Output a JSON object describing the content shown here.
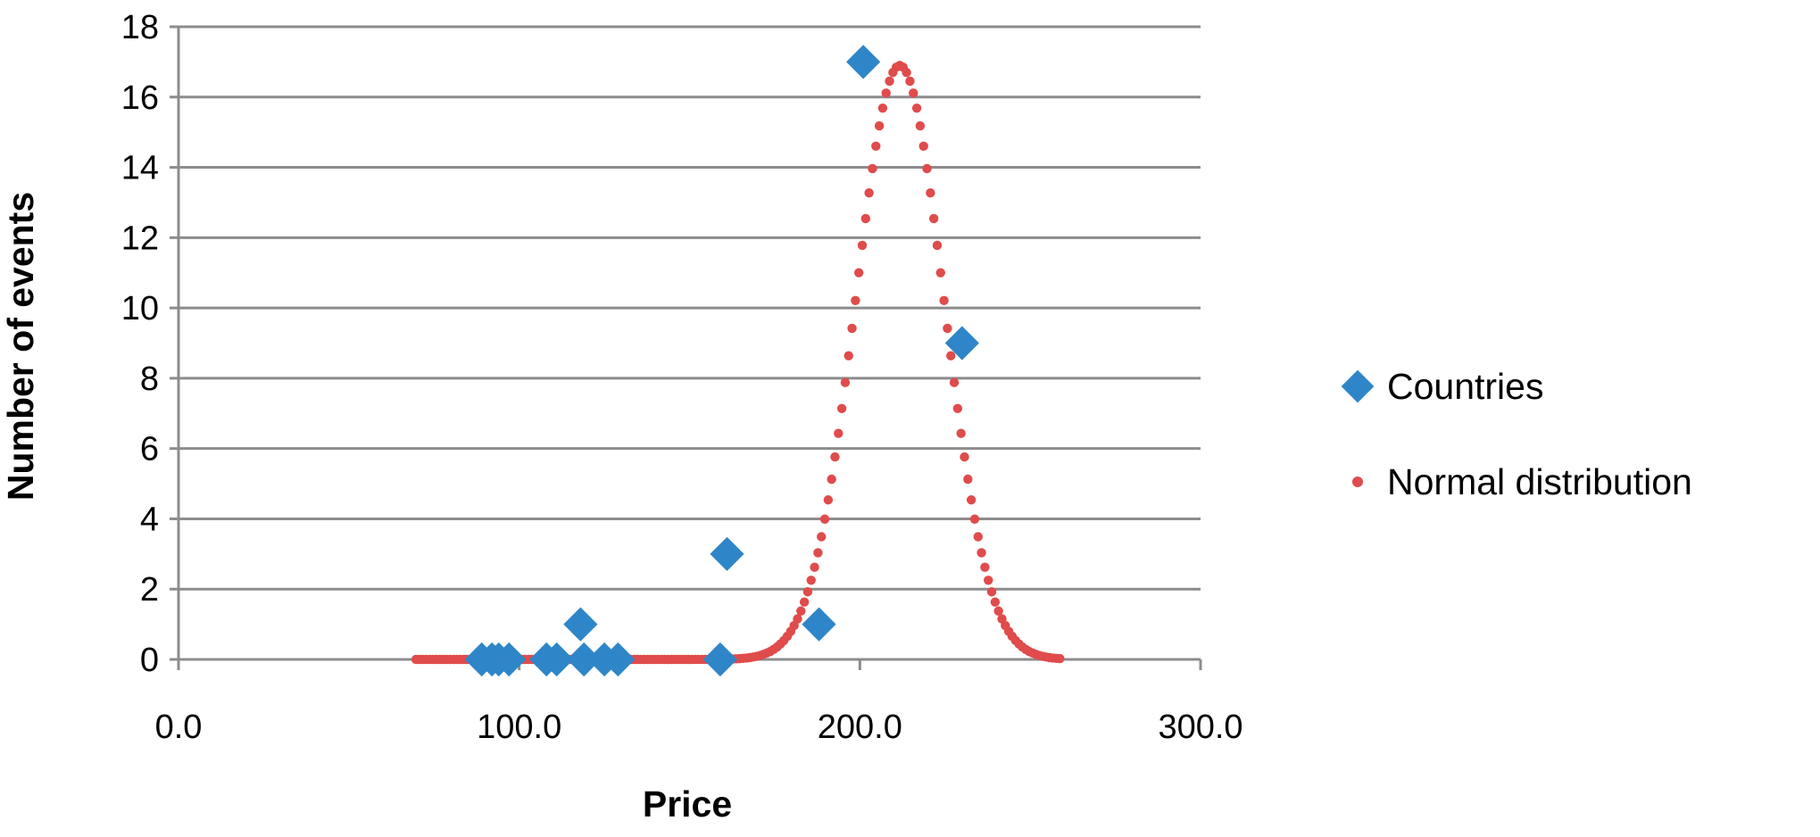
{
  "chart_data": {
    "type": "scatter",
    "title": "",
    "xlabel": "Price",
    "ylabel": "Number of events",
    "xlim": [
      0,
      300
    ],
    "ylim": [
      0,
      18
    ],
    "x_ticks": [
      0,
      100,
      200,
      300
    ],
    "x_tick_labels": [
      "0.0",
      "100.0",
      "200.0",
      "300.0"
    ],
    "y_ticks": [
      0,
      2,
      4,
      6,
      8,
      10,
      12,
      14,
      16,
      18
    ],
    "y_tick_labels": [
      "0",
      "2",
      "4",
      "6",
      "8",
      "10",
      "12",
      "14",
      "16",
      "18"
    ],
    "grid": "horizontal",
    "legend_position": "right",
    "series": [
      {
        "name": "Countries",
        "marker": "diamond",
        "color": "#2E86C8",
        "points": [
          [
            89,
            0
          ],
          [
            92,
            0
          ],
          [
            94,
            0
          ],
          [
            97,
            0
          ],
          [
            108,
            0
          ],
          [
            111,
            0
          ],
          [
            118,
            1
          ],
          [
            119,
            0
          ],
          [
            125,
            0
          ],
          [
            129,
            0
          ],
          [
            159,
            0
          ],
          [
            161,
            3
          ],
          [
            188,
            1
          ],
          [
            201,
            17
          ],
          [
            230,
            9
          ]
        ]
      },
      {
        "name": "Normal distribution",
        "marker": "circle",
        "color": "#E04B4B",
        "x_start": 69.7,
        "x_end": 259.4,
        "x_step": 1.0,
        "peak_x": 211.7,
        "peak_y": 16.9,
        "sigma": 12.95
      }
    ]
  }
}
